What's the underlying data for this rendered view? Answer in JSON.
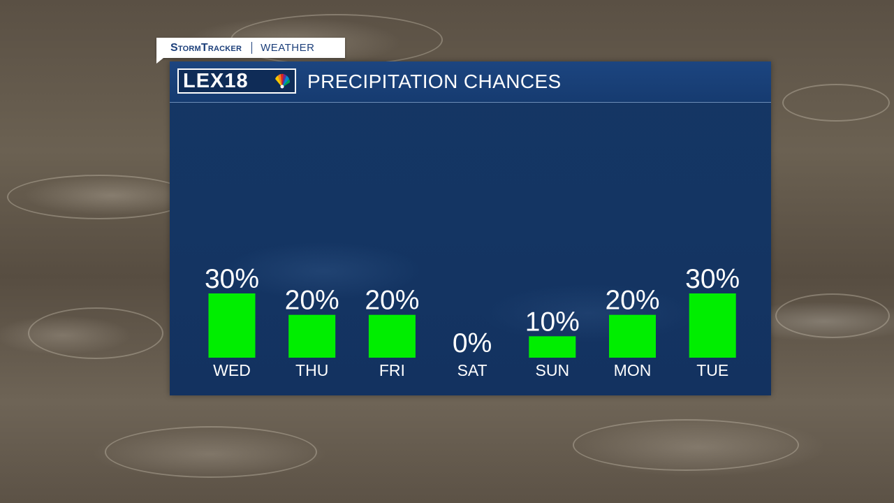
{
  "badge": {
    "brand": "StormTracker",
    "section": "WEATHER"
  },
  "logo": {
    "text": "LEX18"
  },
  "panel": {
    "title": "PRECIPITATION CHANCES"
  },
  "colors": {
    "bar": "#00ee00",
    "panel": "#153664",
    "header": "#1c4580",
    "text": "#ffffff"
  },
  "chart_data": {
    "type": "bar",
    "title": "PRECIPITATION CHANCES",
    "categories": [
      "WED",
      "THU",
      "FRI",
      "SAT",
      "SUN",
      "MON",
      "TUE"
    ],
    "values": [
      30,
      20,
      20,
      0,
      10,
      20,
      30
    ],
    "data_labels": [
      "30%",
      "20%",
      "20%",
      "0%",
      "10%",
      "20%",
      "30%"
    ],
    "unit": "%",
    "ylim": [
      0,
      30
    ],
    "grid": false,
    "legend": "none"
  }
}
